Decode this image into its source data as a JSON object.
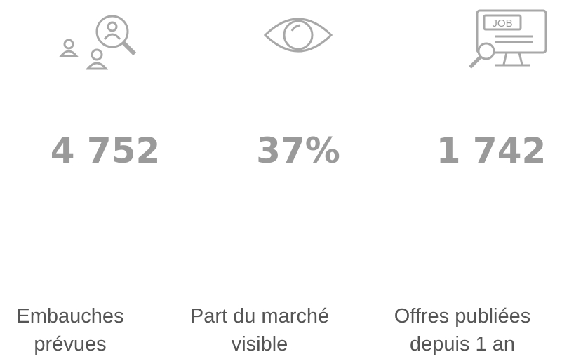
{
  "stats": [
    {
      "value": "4 752",
      "label": [
        "Embauches",
        "prévues"
      ]
    },
    {
      "value": "37%",
      "label": [
        "Part du marché",
        "visible"
      ]
    },
    {
      "value": "1 742",
      "label": [
        "Offres publiées",
        "depuis 1 an"
      ]
    }
  ],
  "icon_text": "JOB"
}
